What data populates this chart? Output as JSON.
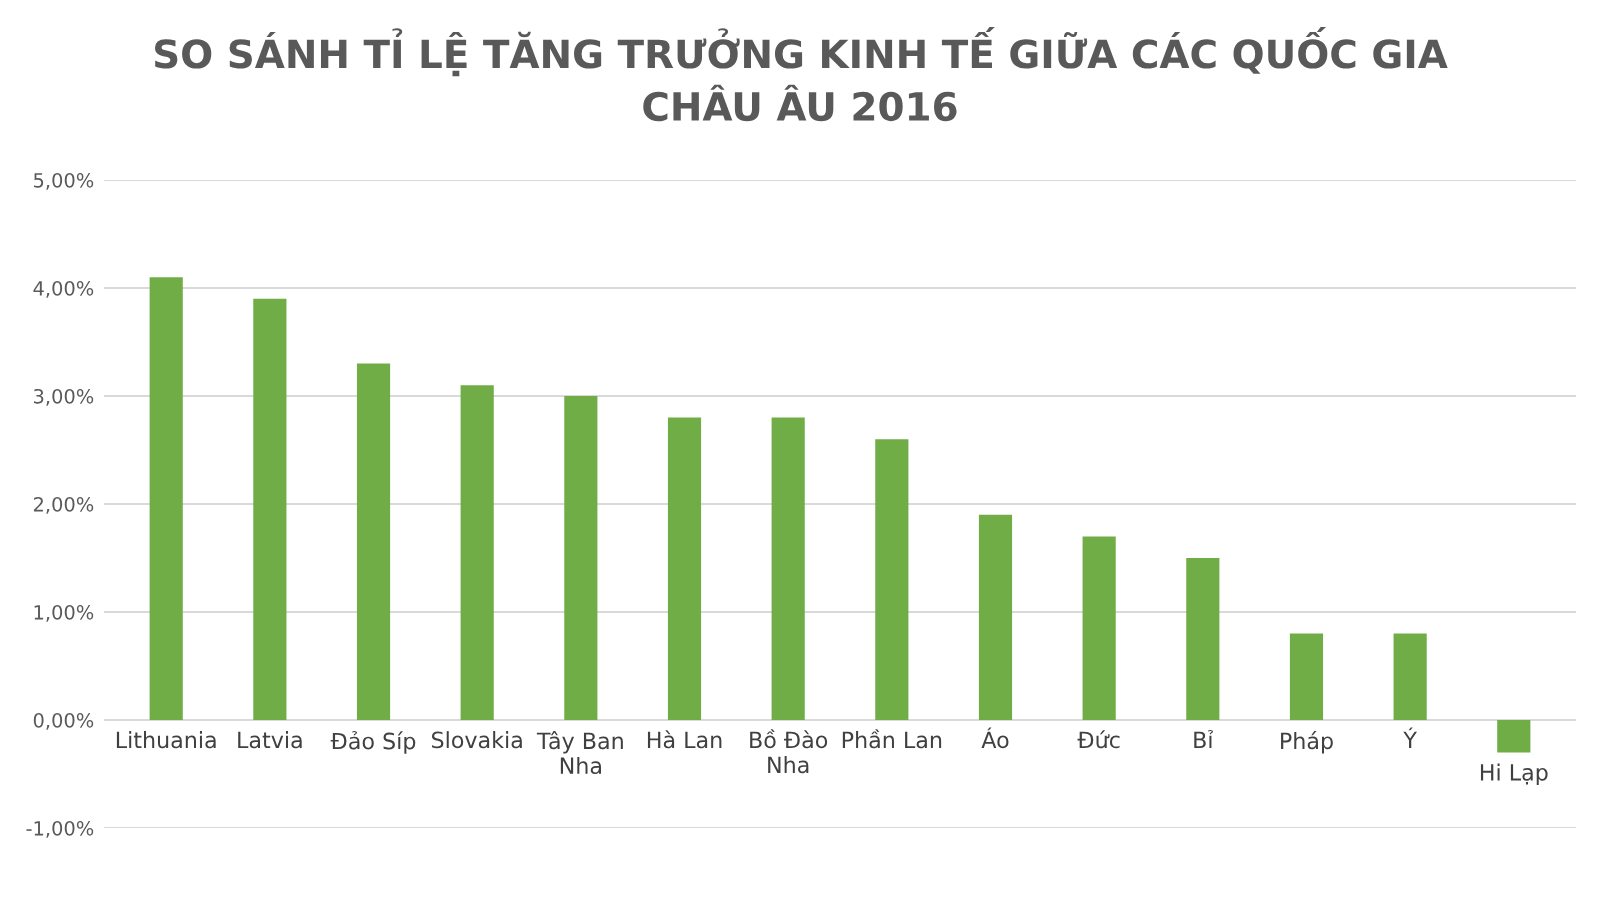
{
  "chart_data": {
    "type": "bar",
    "title": "SO SÁNH TỈ LỆ TĂNG TRƯỞNG KINH TẾ GIỮA CÁC QUỐC GIA\nCHÂU ÂU 2016",
    "categories": [
      "Lithuania",
      "Latvia",
      "Đảo Síp",
      "Slovakia",
      "Tây Ban\nNha",
      "Hà Lan",
      "Bồ Đào\nNha",
      "Phần Lan",
      "Áo",
      "Đức",
      "Bỉ",
      "Pháp",
      "Ý",
      "Hi Lạp"
    ],
    "values": [
      4.1,
      3.9,
      3.3,
      3.1,
      3.0,
      2.8,
      2.8,
      2.6,
      1.9,
      1.7,
      1.5,
      0.8,
      0.8,
      -0.3
    ],
    "color": "#70ad47",
    "ylim": [
      -1,
      5
    ],
    "yticks": [
      {
        "value": -1,
        "label": "-1,00%"
      },
      {
        "value": 0,
        "label": "0,00%"
      },
      {
        "value": 1,
        "label": "1,00%"
      },
      {
        "value": 2,
        "label": "2,00%"
      },
      {
        "value": 3,
        "label": "3,00%"
      },
      {
        "value": 4,
        "label": "4,00%"
      },
      {
        "value": 5,
        "label": "5,00%"
      }
    ],
    "grid": "y"
  }
}
